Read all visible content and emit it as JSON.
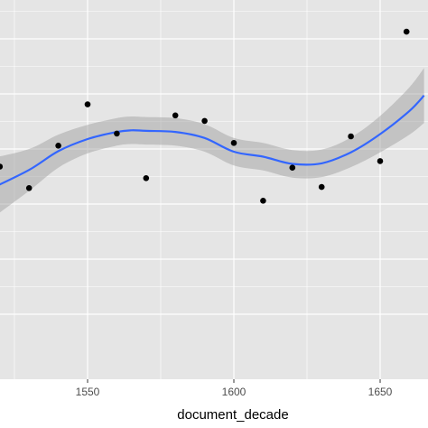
{
  "chart_data": {
    "type": "scatter",
    "title": "",
    "xlabel": "document_decade",
    "ylabel": "",
    "xlim": [
      1520,
      1665
    ],
    "ylim": [
      0,
      10
    ],
    "x_ticks": [
      1550,
      1600,
      1650
    ],
    "x_tick_labels": [
      "1550",
      "1600",
      "1650"
    ],
    "y_gridlines": [
      1,
      2,
      3,
      4,
      5,
      6,
      7
    ],
    "grid": true,
    "legend": "none",
    "points": [
      {
        "x": 1520,
        "y": 3.68
      },
      {
        "x": 1530,
        "y": 3.29
      },
      {
        "x": 1540,
        "y": 4.06
      },
      {
        "x": 1550,
        "y": 4.81
      },
      {
        "x": 1560,
        "y": 4.28
      },
      {
        "x": 1570,
        "y": 3.47
      },
      {
        "x": 1580,
        "y": 4.61
      },
      {
        "x": 1590,
        "y": 4.51
      },
      {
        "x": 1600,
        "y": 4.11
      },
      {
        "x": 1610,
        "y": 3.06
      },
      {
        "x": 1620,
        "y": 3.66
      },
      {
        "x": 1630,
        "y": 3.31
      },
      {
        "x": 1640,
        "y": 4.23
      },
      {
        "x": 1650,
        "y": 3.78
      },
      {
        "x": 1659,
        "y": 6.13
      }
    ],
    "smooth": {
      "x": [
        1517,
        1530,
        1540,
        1550,
        1560,
        1565,
        1570,
        1580,
        1590,
        1600,
        1610,
        1620,
        1630,
        1640,
        1650,
        1660,
        1665
      ],
      "y": [
        3.28,
        3.62,
        3.96,
        4.18,
        4.31,
        4.34,
        4.33,
        4.31,
        4.2,
        3.95,
        3.86,
        3.73,
        3.74,
        3.94,
        4.27,
        4.69,
        4.97
      ],
      "ci_half_width": [
        0.55,
        0.38,
        0.3,
        0.26,
        0.25,
        0.25,
        0.25,
        0.25,
        0.25,
        0.25,
        0.25,
        0.25,
        0.25,
        0.27,
        0.33,
        0.43,
        0.5
      ]
    },
    "colors": {
      "panel": "#e5e5e5",
      "grid": "#ffffff",
      "points": "#000000",
      "line": "#3366ff",
      "ribbon": "#999999"
    }
  }
}
